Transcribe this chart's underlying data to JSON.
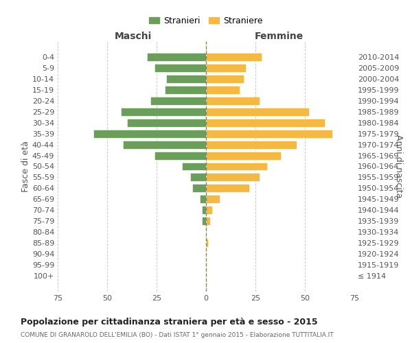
{
  "age_groups": [
    "100+",
    "95-99",
    "90-94",
    "85-89",
    "80-84",
    "75-79",
    "70-74",
    "65-69",
    "60-64",
    "55-59",
    "50-54",
    "45-49",
    "40-44",
    "35-39",
    "30-34",
    "25-29",
    "20-24",
    "15-19",
    "10-14",
    "5-9",
    "0-4"
  ],
  "birth_years": [
    "≤ 1914",
    "1915-1919",
    "1920-1924",
    "1925-1929",
    "1930-1934",
    "1935-1939",
    "1940-1944",
    "1945-1949",
    "1950-1954",
    "1955-1959",
    "1960-1964",
    "1965-1969",
    "1970-1974",
    "1975-1979",
    "1980-1984",
    "1985-1989",
    "1990-1994",
    "1995-1999",
    "2000-2004",
    "2005-2009",
    "2010-2014"
  ],
  "males": [
    0,
    0,
    0,
    0,
    0,
    2,
    2,
    3,
    7,
    8,
    12,
    26,
    42,
    57,
    40,
    43,
    28,
    21,
    20,
    26,
    30
  ],
  "females": [
    0,
    0,
    0,
    1,
    0,
    2,
    3,
    7,
    22,
    27,
    31,
    38,
    46,
    64,
    60,
    52,
    27,
    17,
    19,
    20,
    28
  ],
  "male_color": "#6a9e5a",
  "female_color": "#f5b942",
  "title": "Popolazione per cittadinanza straniera per età e sesso - 2015",
  "subtitle": "COMUNE DI GRANAROLO DELL'EMILIA (BO) - Dati ISTAT 1° gennaio 2015 - Elaborazione TUTTITALIA.IT",
  "xlabel_left": "Maschi",
  "xlabel_right": "Femmine",
  "ylabel_left": "Fasce di età",
  "ylabel_right": "Anni di nascita",
  "legend_male": "Stranieri",
  "legend_female": "Straniere",
  "xlim": 75,
  "background_color": "#ffffff",
  "grid_color": "#cccccc",
  "centerline_color": "#888855"
}
